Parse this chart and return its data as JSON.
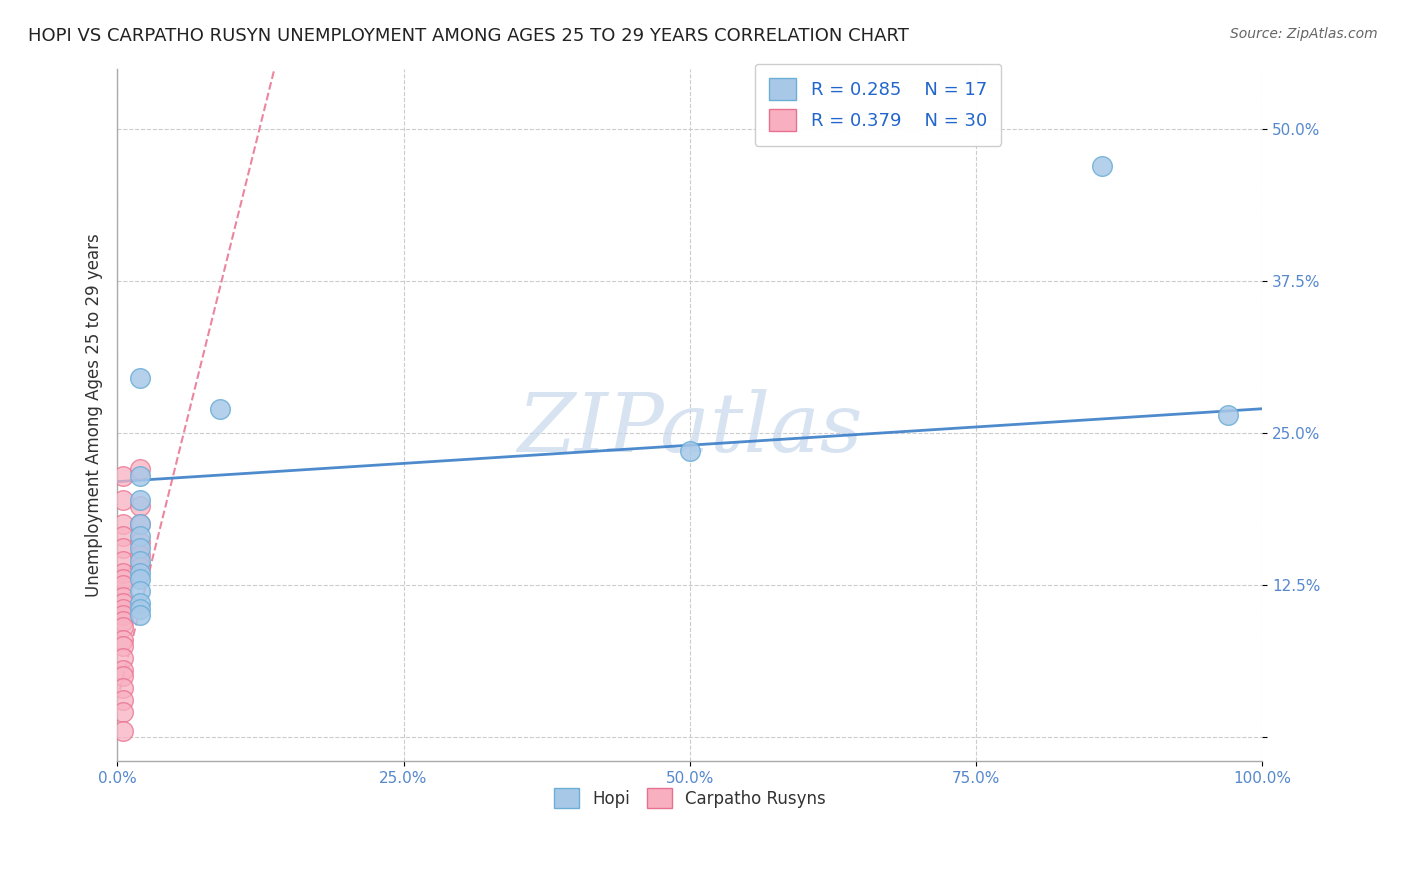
{
  "title": "HOPI VS CARPATHO RUSYN UNEMPLOYMENT AMONG AGES 25 TO 29 YEARS CORRELATION CHART",
  "source": "Source: ZipAtlas.com",
  "ylabel": "Unemployment Among Ages 25 to 29 years",
  "xlim": [
    0,
    1.0
  ],
  "ylim": [
    -0.02,
    0.55
  ],
  "xticks": [
    0.0,
    0.25,
    0.5,
    0.75,
    1.0
  ],
  "xtick_labels": [
    "0.0%",
    "25.0%",
    "50.0%",
    "75.0%",
    "100.0%"
  ],
  "yticks": [
    0.0,
    0.125,
    0.25,
    0.375,
    0.5
  ],
  "ytick_labels": [
    "",
    "12.5%",
    "25.0%",
    "37.5%",
    "50.0%"
  ],
  "hopi_R": 0.285,
  "hopi_N": 17,
  "carpatho_R": 0.379,
  "carpatho_N": 30,
  "hopi_color": "#a8c8e8",
  "hopi_edge_color": "#6baed6",
  "carpatho_color": "#f8b0c0",
  "carpatho_edge_color": "#e87090",
  "hopi_line_color": "#3a7ec8",
  "carpatho_line_color": "#e87090",
  "background_color": "#ffffff",
  "grid_color": "#cccccc",
  "watermark": "ZIPatlas",
  "watermark_color": "#c8d8ec",
  "hopi_x": [
    0.02,
    0.02,
    0.09,
    0.5,
    0.86,
    0.97,
    0.02,
    0.02,
    0.02,
    0.02,
    0.02,
    0.02,
    0.02,
    0.02,
    0.02,
    0.02,
    0.02
  ],
  "hopi_y": [
    0.295,
    0.215,
    0.27,
    0.235,
    0.47,
    0.265,
    0.195,
    0.175,
    0.165,
    0.155,
    0.145,
    0.135,
    0.13,
    0.12,
    0.11,
    0.105,
    0.1
  ],
  "carpatho_x": [
    0.005,
    0.005,
    0.005,
    0.005,
    0.005,
    0.005,
    0.005,
    0.005,
    0.005,
    0.005,
    0.005,
    0.005,
    0.005,
    0.005,
    0.005,
    0.005,
    0.005,
    0.005,
    0.005,
    0.005,
    0.005,
    0.005,
    0.005,
    0.005,
    0.02,
    0.02,
    0.02,
    0.02,
    0.02,
    0.02
  ],
  "carpatho_y": [
    0.215,
    0.195,
    0.175,
    0.165,
    0.155,
    0.145,
    0.135,
    0.13,
    0.125,
    0.115,
    0.11,
    0.105,
    0.1,
    0.095,
    0.09,
    0.08,
    0.075,
    0.065,
    0.055,
    0.05,
    0.04,
    0.03,
    0.02,
    0.005,
    0.22,
    0.19,
    0.175,
    0.16,
    0.15,
    0.14
  ],
  "hopi_trend_x": [
    0.0,
    1.0
  ],
  "hopi_trend_y": [
    0.21,
    0.27
  ],
  "carpatho_trend_x": [
    0.0,
    0.14
  ],
  "carpatho_trend_y": [
    0.03,
    0.56
  ]
}
